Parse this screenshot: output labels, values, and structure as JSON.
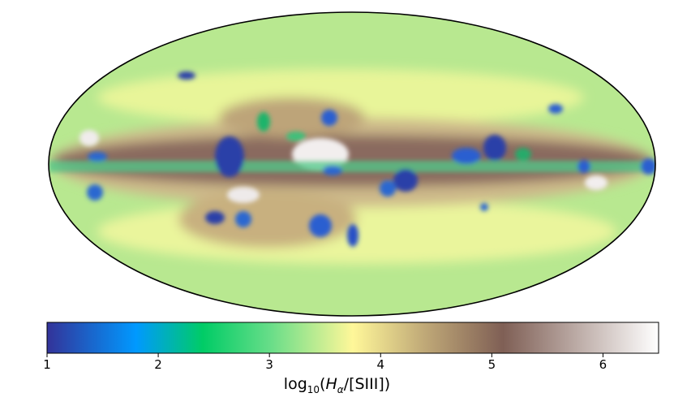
{
  "chart_data": {
    "type": "heatmap",
    "projection": "mollweide",
    "colormap": "terrain",
    "colorbar": {
      "orientation": "horizontal",
      "range": [
        1,
        6.5
      ],
      "ticks": [
        1,
        2,
        3,
        4,
        5,
        6
      ],
      "tick_labels": [
        "1",
        "2",
        "3",
        "4",
        "5",
        "6"
      ],
      "label": {
        "prefix": "log",
        "base": "10",
        "open": "(",
        "symbol": "H",
        "symbol_sub": "α",
        "denominator": "/[SIII])"
      }
    },
    "background_level": 3.6,
    "galactic_plane_level": 5.2,
    "stops": [
      {
        "v": 1.0,
        "color": "#333399"
      },
      {
        "v": 1.8,
        "color": "#0099ff"
      },
      {
        "v": 2.4,
        "color": "#00cc66"
      },
      {
        "v": 3.0,
        "color": "#66dd88"
      },
      {
        "v": 3.75,
        "color": "#fff799"
      },
      {
        "v": 4.4,
        "color": "#bfa877"
      },
      {
        "v": 5.1,
        "color": "#7f5f55"
      },
      {
        "v": 6.5,
        "color": "#ffffff"
      }
    ]
  }
}
